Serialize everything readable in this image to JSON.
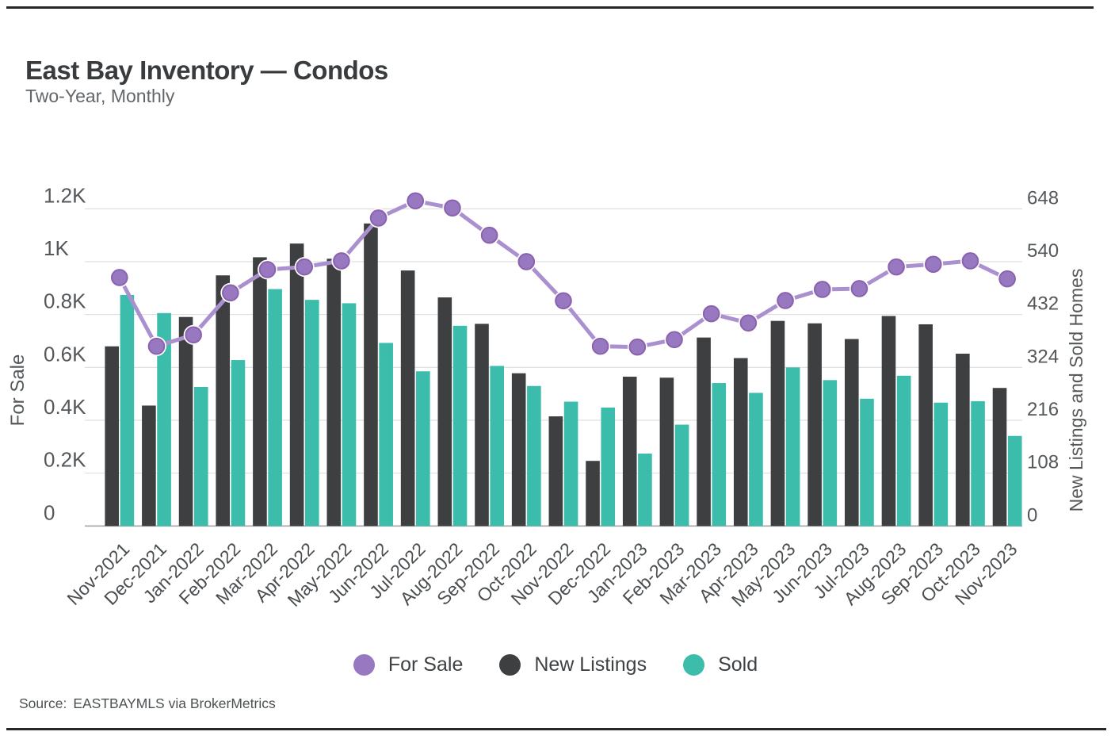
{
  "header": {
    "title": "East Bay Inventory — Condos",
    "subtitle": "Two-Year, Monthly"
  },
  "source": {
    "label": "Source:",
    "value": "EASTBAYMLS via BrokerMetrics"
  },
  "colors": {
    "for_sale_line": "#ab90d0",
    "for_sale_marker": "#9878c0",
    "for_sale_marker_edge": "#8a62ae",
    "new_listings": "#3d3f41",
    "sold": "#3cbcaa",
    "grid": "#dcdcdc",
    "baseline": "#a6a6a6",
    "tick_text": "#54585a",
    "axis_title_text": "#54585a",
    "x_tick_text": "#4a4e50",
    "rule": "#272727"
  },
  "chart_data": {
    "type": "combo",
    "title": "East Bay Inventory — Condos",
    "subtitle": "Two-Year, Monthly",
    "categories": [
      "Nov-2021",
      "Dec-2021",
      "Jan-2022",
      "Feb-2022",
      "Mar-2022",
      "Apr-2022",
      "May-2022",
      "Jun-2022",
      "Jul-2022",
      "Aug-2022",
      "Sep-2022",
      "Oct-2022",
      "Nov-2022",
      "Dec-2022",
      "Jan-2023",
      "Feb-2023",
      "Mar-2023",
      "Apr-2023",
      "May-2023",
      "Jun-2023",
      "Jul-2023",
      "Aug-2023",
      "Sep-2023",
      "Oct-2023",
      "Nov-2023"
    ],
    "series": [
      {
        "name": "For Sale",
        "kind": "line",
        "axis": "left",
        "color_key": "for_sale_marker",
        "values": [
          940,
          680,
          723,
          882,
          970,
          980,
          1003,
          1165,
          1230,
          1203,
          1100,
          1000,
          852,
          680,
          677,
          705,
          803,
          768,
          853,
          895,
          898,
          980,
          990,
          1003,
          935
        ]
      },
      {
        "name": "New Listings",
        "kind": "bar",
        "axis": "right",
        "color_key": "new_listings",
        "values": [
          367,
          246,
          427,
          512,
          549,
          577,
          546,
          618,
          522,
          467,
          413,
          312,
          224,
          133,
          305,
          303,
          385,
          343,
          419,
          414,
          382,
          429,
          412,
          352,
          282
        ]
      },
      {
        "name": "Sold",
        "kind": "bar",
        "axis": "right",
        "color_key": "sold",
        "values": [
          472,
          435,
          284,
          339,
          484,
          462,
          455,
          374,
          316,
          409,
          327,
          286,
          254,
          242,
          148,
          207,
          292,
          272,
          324,
          298,
          260,
          307,
          252,
          255,
          184
        ]
      }
    ],
    "left_axis": {
      "title": "For Sale",
      "min": 0,
      "max": 1200,
      "ticks": [
        0,
        200,
        400,
        600,
        800,
        1000,
        1200
      ],
      "tick_labels": [
        "0",
        "0.2K",
        "0.4K",
        "0.6K",
        "0.8K",
        "1K",
        "1.2K"
      ]
    },
    "right_axis": {
      "title": "New Listings and Sold Homes",
      "min": 0,
      "max": 648,
      "ticks": [
        0,
        108,
        216,
        324,
        432,
        540,
        648
      ],
      "tick_labels": [
        "0",
        "108",
        "216",
        "324",
        "432",
        "540",
        "648"
      ]
    },
    "legend": {
      "position": "bottom",
      "items": [
        "For Sale",
        "New Listings",
        "Sold"
      ]
    },
    "grid": "horizontal"
  }
}
